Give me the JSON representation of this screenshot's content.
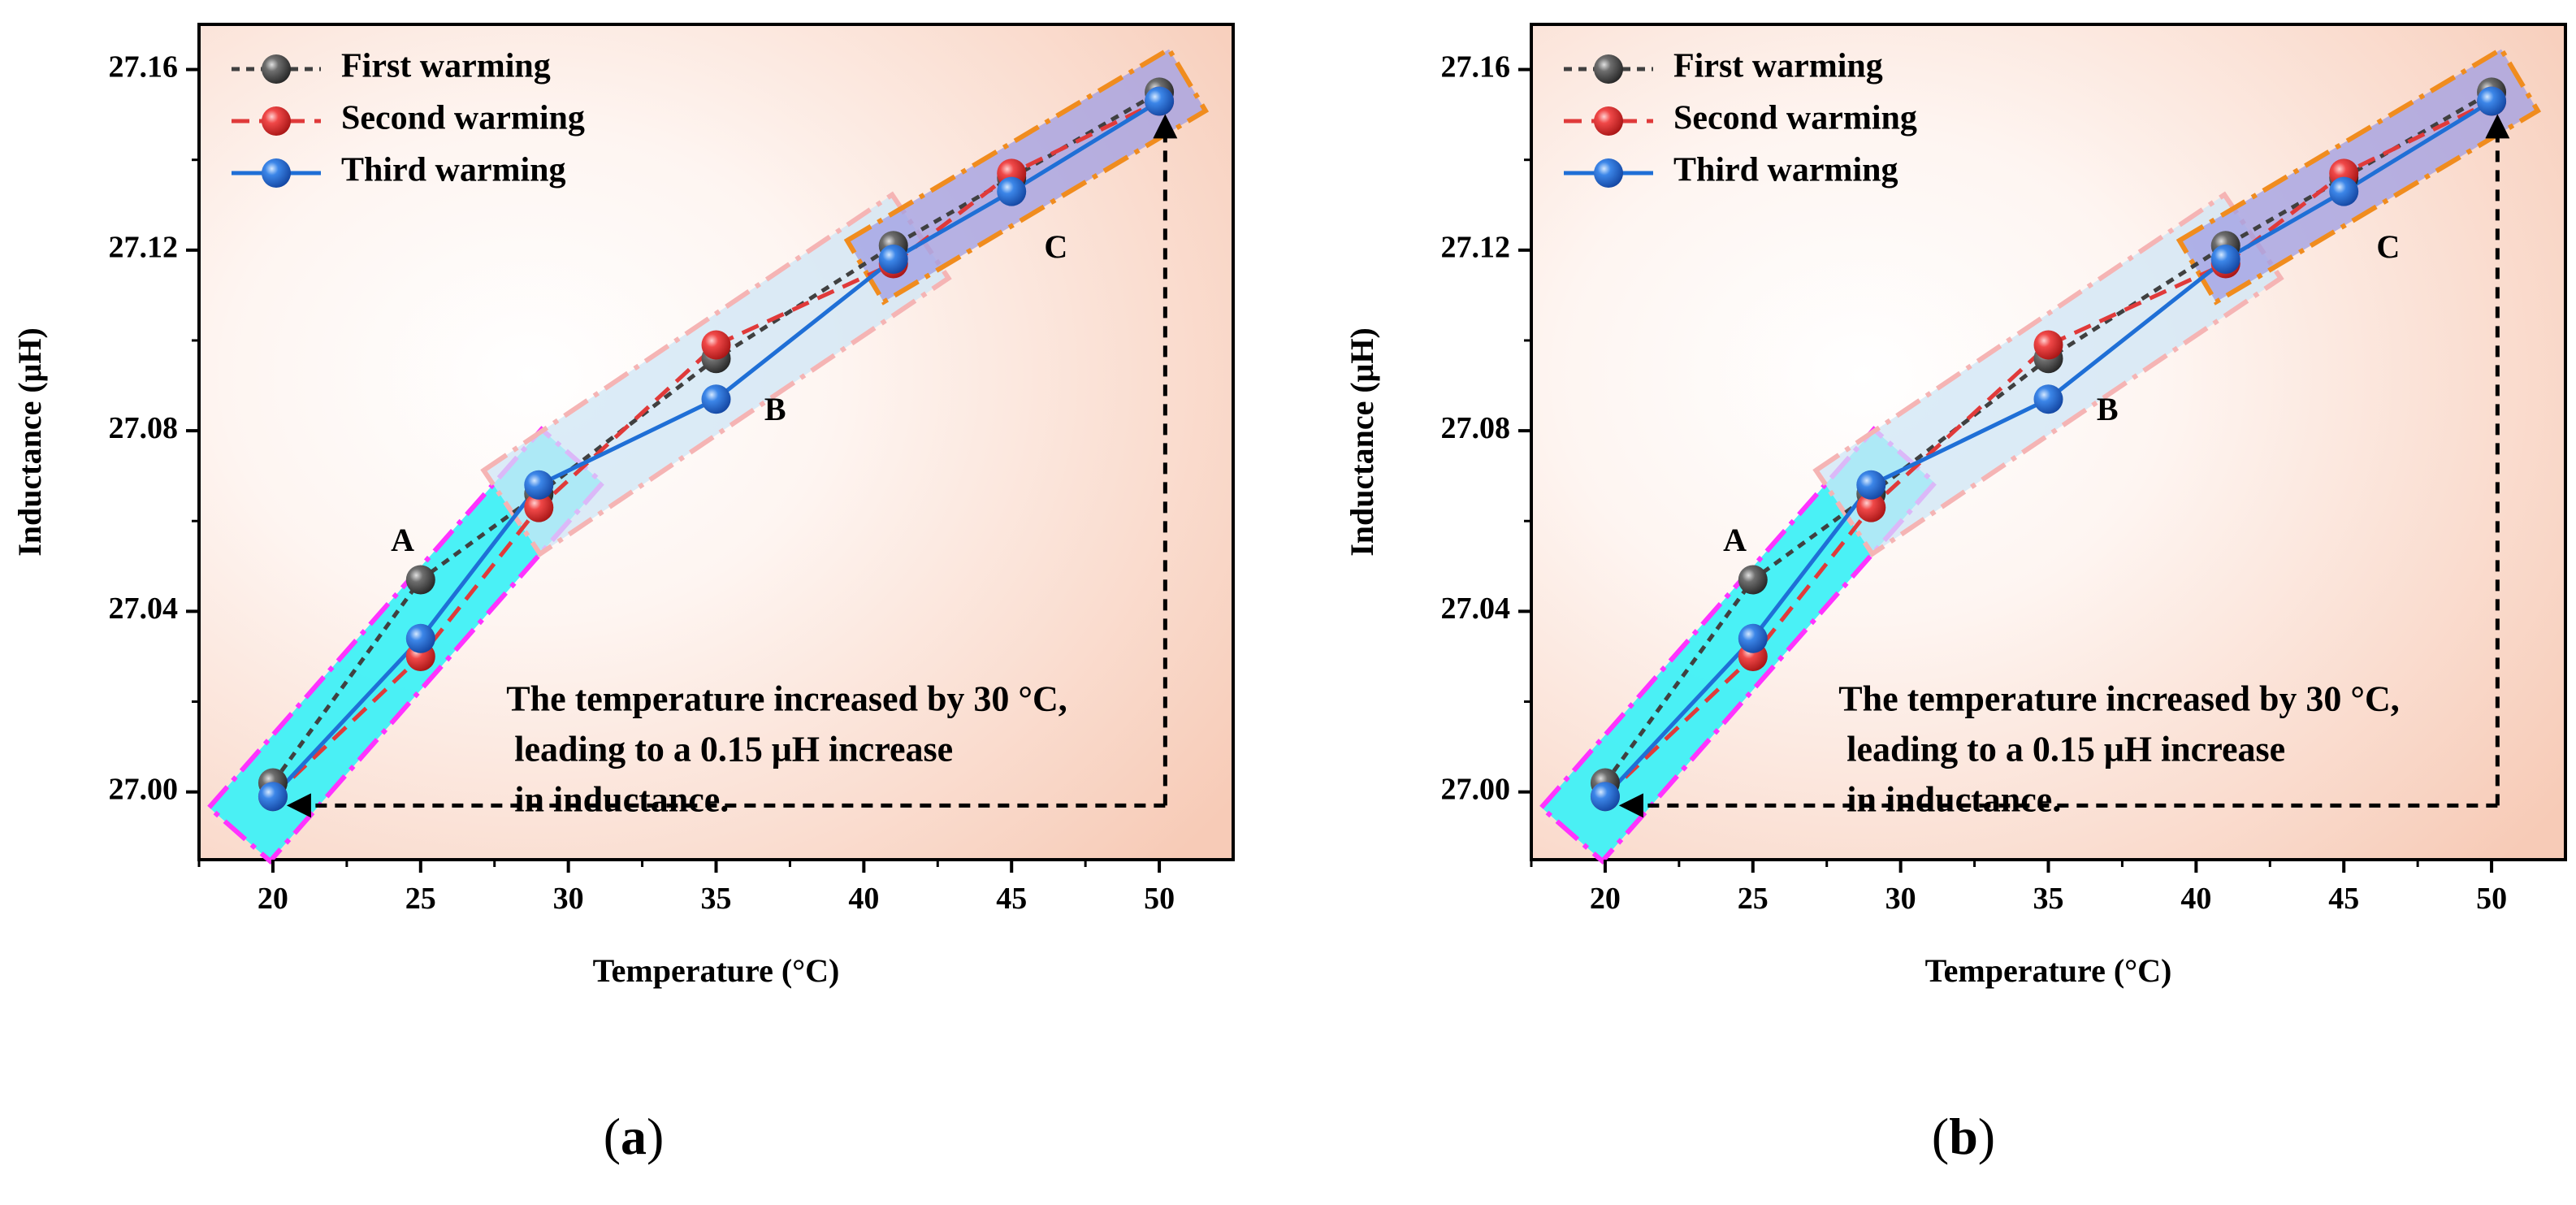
{
  "figure": {
    "panels": [
      {
        "label_open": "(",
        "label_letter": "a",
        "label_close": ")"
      },
      {
        "label_open": "(",
        "label_letter": "b",
        "label_close": ")"
      }
    ]
  },
  "chart_data": [
    {
      "type": "line",
      "panel": "a",
      "xlabel": "Temperature (°C)",
      "ylabel": "Inductance  (μH)",
      "xlim": [
        17.5,
        52.5
      ],
      "ylim": [
        26.985,
        27.17
      ],
      "xticks": [
        20,
        25,
        30,
        35,
        40,
        45,
        50
      ],
      "yticks": [
        27.0,
        27.04,
        27.08,
        27.12,
        27.16
      ],
      "x": [
        20,
        25,
        29,
        35,
        41,
        45,
        50
      ],
      "series": [
        {
          "name": "First warming",
          "color": "#404040",
          "dash": "short",
          "values": [
            27.002,
            27.047,
            27.066,
            27.096,
            27.121,
            27.136,
            27.155
          ]
        },
        {
          "name": "Second warming",
          "color": "#e03a3a",
          "dash": "long",
          "values": [
            26.999,
            27.03,
            27.063,
            27.099,
            27.117,
            27.137,
            27.153
          ]
        },
        {
          "name": "Third warming",
          "color": "#1f6fd6",
          "dash": "solid",
          "values": [
            26.999,
            27.034,
            27.068,
            27.087,
            27.118,
            27.133,
            27.153
          ]
        }
      ],
      "regions": [
        {
          "name": "A",
          "color": "#ff33ff",
          "fill": "#40f0f5"
        },
        {
          "name": "B",
          "color": "#f5b4b4",
          "fill": "#cfe6f5"
        },
        {
          "name": "C",
          "color": "#f08c1e",
          "fill": "#9f9ee3"
        }
      ],
      "annotation": [
        "The temperature increased by 30 °C,",
        "leading to a 0.15 μH increase",
        "in inductance."
      ]
    },
    {
      "type": "line",
      "panel": "b",
      "xlabel": "Temperature (°C)",
      "ylabel": "Inductance  (μH)",
      "xlim": [
        17.5,
        52.5
      ],
      "ylim": [
        26.985,
        27.17
      ],
      "xticks": [
        20,
        25,
        30,
        35,
        40,
        45,
        50
      ],
      "yticks": [
        27.0,
        27.04,
        27.08,
        27.12,
        27.16
      ],
      "x": [
        20,
        25,
        29,
        35,
        41,
        45,
        50
      ],
      "series": [
        {
          "name": "First warming",
          "color": "#404040",
          "dash": "short",
          "values": [
            27.002,
            27.047,
            27.066,
            27.096,
            27.121,
            27.136,
            27.155
          ]
        },
        {
          "name": "Second warming",
          "color": "#e03a3a",
          "dash": "long",
          "values": [
            26.999,
            27.03,
            27.063,
            27.099,
            27.117,
            27.137,
            27.153
          ]
        },
        {
          "name": "Third warming",
          "color": "#1f6fd6",
          "dash": "solid",
          "values": [
            26.999,
            27.034,
            27.068,
            27.087,
            27.118,
            27.133,
            27.153
          ]
        }
      ],
      "regions": [
        {
          "name": "A",
          "color": "#ff33ff",
          "fill": "#40f0f5"
        },
        {
          "name": "B",
          "color": "#f5b4b4",
          "fill": "#cfe6f5"
        },
        {
          "name": "C",
          "color": "#f08c1e",
          "fill": "#9f9ee3"
        }
      ],
      "annotation": [
        "The temperature increased by 30 °C,",
        "leading to a 0.15 μH increase",
        "in inductance."
      ]
    }
  ]
}
